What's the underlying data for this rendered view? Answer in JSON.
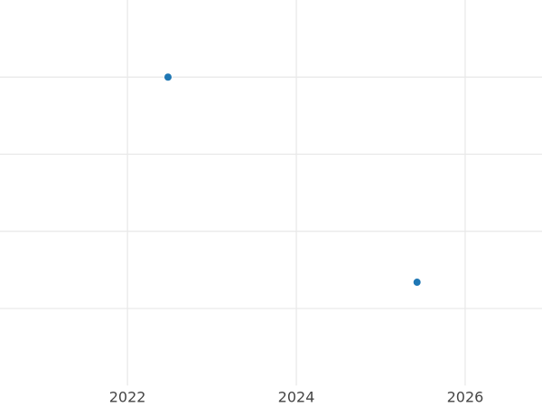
{
  "chart_data": {
    "type": "scatter",
    "series": [
      {
        "color": "#1f77b4",
        "x": [
          2022.48,
          2025.43
        ],
        "values": [
          4.0,
          1.34
        ]
      }
    ],
    "xlim": [
      2020.49,
      2026.91
    ],
    "xticks": [
      2022,
      2024,
      2026
    ],
    "ylim": [
      0,
      5
    ],
    "yticks": [
      1,
      2,
      3,
      4
    ],
    "show_ytick_labels": false,
    "grid": true
  }
}
